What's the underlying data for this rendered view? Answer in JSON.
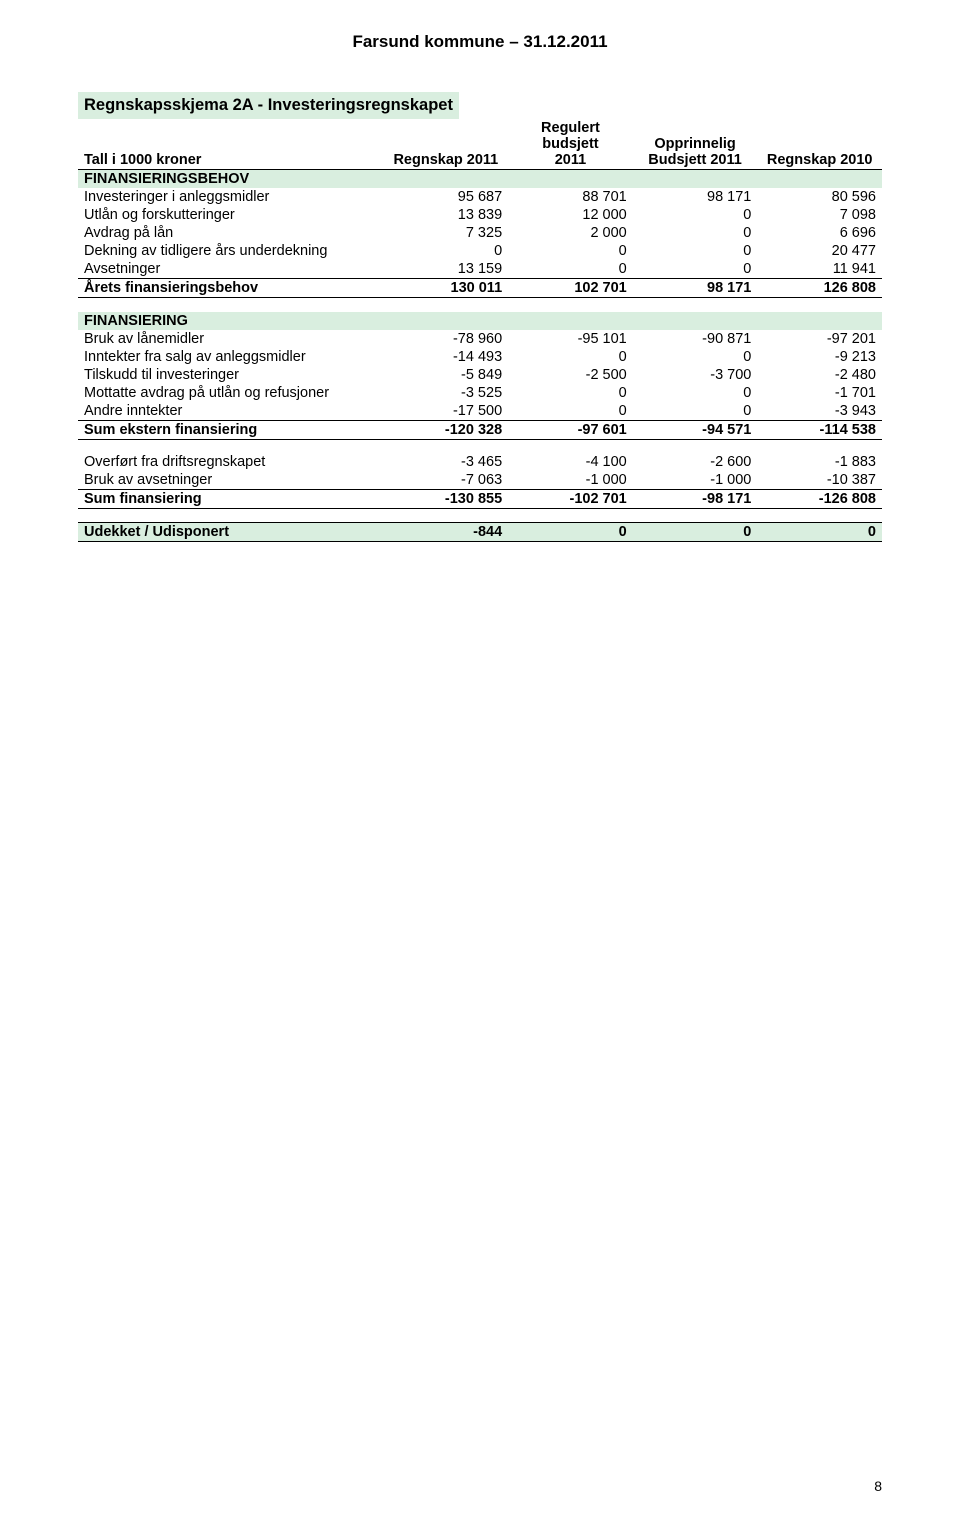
{
  "page": {
    "title": "Farsund kommune – 31.12.2011",
    "number": "8"
  },
  "sheet": {
    "title": "Regnskapsskjema 2A - Investeringsregnskapet",
    "header": {
      "col1": "Tall i 1000 kroner",
      "col2": "Regnskap 2011",
      "col3_line1": "Regulert budsjett",
      "col3_line2": "2011",
      "col4_line1": "Opprinnelig",
      "col4_line2": "Budsjett 2011",
      "col5": "Regnskap 2010"
    },
    "sections": [
      {
        "subheader": "FINANSIERINGSBEHOV",
        "rows": [
          {
            "label": "Investeringer i anleggsmidler",
            "v": [
              "95 687",
              "88 701",
              "98 171",
              "80 596"
            ]
          },
          {
            "label": "Utlån og forskutteringer",
            "v": [
              "13 839",
              "12 000",
              "0",
              "7 098"
            ]
          },
          {
            "label": "Avdrag på lån",
            "v": [
              "7 325",
              "2 000",
              "0",
              "6 696"
            ]
          },
          {
            "label": "Dekning av tidligere års underdekning",
            "v": [
              "0",
              "0",
              "0",
              "20 477"
            ]
          },
          {
            "label": "Avsetninger",
            "v": [
              "13 159",
              "0",
              "0",
              "11 941"
            ]
          }
        ],
        "sum": {
          "label": "Årets finansieringsbehov",
          "v": [
            "130 011",
            "102 701",
            "98 171",
            "126 808"
          ]
        }
      },
      {
        "subheader": "FINANSIERING",
        "rows": [
          {
            "label": "Bruk av lånemidler",
            "v": [
              "-78 960",
              "-95 101",
              "-90 871",
              "-97 201"
            ]
          },
          {
            "label": "Inntekter fra salg av anleggsmidler",
            "v": [
              "-14 493",
              "0",
              "0",
              "-9 213"
            ]
          },
          {
            "label": "Tilskudd til investeringer",
            "v": [
              "-5 849",
              "-2 500",
              "-3 700",
              "-2 480"
            ]
          },
          {
            "label": "Mottatte avdrag på utlån og refusjoner",
            "v": [
              "-3 525",
              "0",
              "0",
              "-1 701"
            ]
          },
          {
            "label": "Andre inntekter",
            "v": [
              "-17 500",
              "0",
              "0",
              "-3 943"
            ]
          }
        ],
        "sum": {
          "label": "Sum ekstern finansiering",
          "v": [
            "-120 328",
            "-97 601",
            "-94 571",
            "-114 538"
          ]
        }
      },
      {
        "rows": [
          {
            "label": "Overført fra driftsregnskapet",
            "v": [
              "-3 465",
              "-4 100",
              "-2 600",
              "-1 883"
            ]
          },
          {
            "label": "Bruk av avsetninger",
            "v": [
              "-7 063",
              "-1 000",
              "-1 000",
              "-10 387"
            ]
          }
        ],
        "sum": {
          "label": "Sum finansiering",
          "v": [
            "-130 855",
            "-102 701",
            "-98 171",
            "-126 808"
          ]
        }
      }
    ],
    "final": {
      "label": "Udekket / Udisponert",
      "v": [
        "-844",
        "0",
        "0",
        "0"
      ]
    }
  },
  "colors": {
    "section_bg": "#d9eedf",
    "text": "#000000",
    "page_bg": "#ffffff"
  }
}
